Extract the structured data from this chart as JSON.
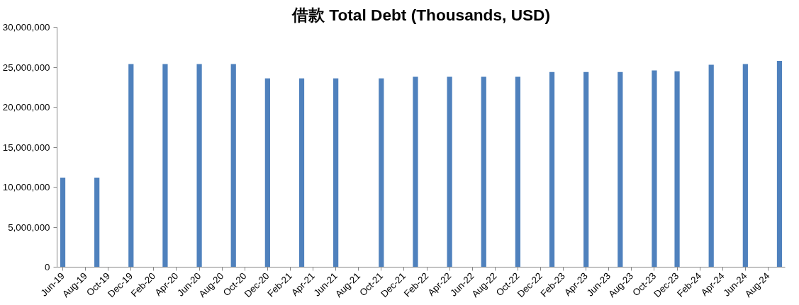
{
  "chart_data": {
    "type": "bar",
    "title": "借款 Total Debt (Thousands, USD)",
    "x": [
      "2019-06",
      "2019-09",
      "2019-12",
      "2020-03",
      "2020-06",
      "2020-09",
      "2020-12",
      "2021-03",
      "2021-06",
      "2021-10",
      "2022-01",
      "2022-04",
      "2022-07",
      "2022-10",
      "2023-01",
      "2023-04",
      "2023-07",
      "2023-10",
      "2023-12",
      "2024-03",
      "2024-06",
      "2024-09"
    ],
    "values": [
      11200000,
      11200000,
      25400000,
      25400000,
      25400000,
      25400000,
      23600000,
      23600000,
      23600000,
      23600000,
      23800000,
      23800000,
      23800000,
      23800000,
      24400000,
      24400000,
      24400000,
      24600000,
      24500000,
      25300000,
      25400000,
      25800000
    ],
    "color": "#4f81bd",
    "xlim": [
      "2019-05-16",
      "2024-09-16"
    ],
    "xticks": [
      {
        "value": "2019-06",
        "label": "Jun-19"
      },
      {
        "value": "2019-08",
        "label": "Aug-19"
      },
      {
        "value": "2019-10",
        "label": "Oct-19"
      },
      {
        "value": "2019-12",
        "label": "Dec-19"
      },
      {
        "value": "2020-02",
        "label": "Feb-20"
      },
      {
        "value": "2020-04",
        "label": "Apr-20"
      },
      {
        "value": "2020-06",
        "label": "Jun-20"
      },
      {
        "value": "2020-08",
        "label": "Aug-20"
      },
      {
        "value": "2020-10",
        "label": "Oct-20"
      },
      {
        "value": "2020-12",
        "label": "Dec-20"
      },
      {
        "value": "2021-02",
        "label": "Feb-21"
      },
      {
        "value": "2021-04",
        "label": "Apr-21"
      },
      {
        "value": "2021-06",
        "label": "Jun-21"
      },
      {
        "value": "2021-08",
        "label": "Aug-21"
      },
      {
        "value": "2021-10",
        "label": "Oct-21"
      },
      {
        "value": "2021-12",
        "label": "Dec-21"
      },
      {
        "value": "2022-02",
        "label": "Feb-22"
      },
      {
        "value": "2022-04",
        "label": "Apr-22"
      },
      {
        "value": "2022-06",
        "label": "Jun-22"
      },
      {
        "value": "2022-08",
        "label": "Aug-22"
      },
      {
        "value": "2022-10",
        "label": "Oct-22"
      },
      {
        "value": "2022-12",
        "label": "Dec-22"
      },
      {
        "value": "2023-02",
        "label": "Feb-23"
      },
      {
        "value": "2023-04",
        "label": "Apr-23"
      },
      {
        "value": "2023-06",
        "label": "Jun-23"
      },
      {
        "value": "2023-08",
        "label": "Aug-23"
      },
      {
        "value": "2023-10",
        "label": "Oct-23"
      },
      {
        "value": "2023-12",
        "label": "Dec-23"
      },
      {
        "value": "2024-02",
        "label": "Feb-24"
      },
      {
        "value": "2024-04",
        "label": "Apr-24"
      },
      {
        "value": "2024-06",
        "label": "Jun-24"
      },
      {
        "value": "2024-08",
        "label": "Aug-24"
      }
    ],
    "ylim": [
      0,
      30000000
    ],
    "yticks": [
      {
        "value": 0,
        "label": "0"
      },
      {
        "value": 5000000,
        "label": "5,000,000"
      },
      {
        "value": 10000000,
        "label": "10,000,000"
      },
      {
        "value": 15000000,
        "label": "15,000,000"
      },
      {
        "value": 20000000,
        "label": "20,000,000"
      },
      {
        "value": 25000000,
        "label": "25,000,000"
      },
      {
        "value": 30000000,
        "label": "30,000,000"
      }
    ],
    "grid": false
  }
}
